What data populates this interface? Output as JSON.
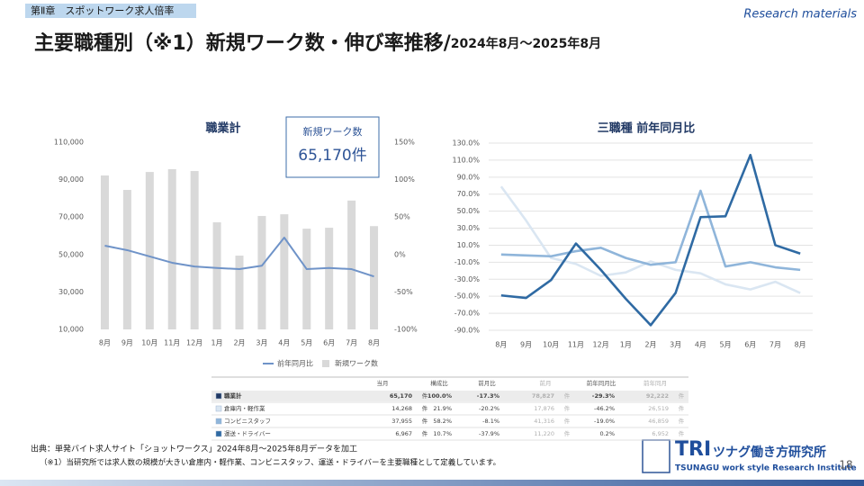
{
  "header": {
    "chapter": "第Ⅱ章　スポットワーク求人倍率",
    "tag": "Research materials",
    "title": "主要職種別（※1）新規ワーク数・伸び率推移/",
    "subtitle": "2024年8月～2025年8月"
  },
  "chart_data": [
    {
      "type": "combo",
      "title": "職業計",
      "annotation": {
        "label": "新規ワーク数",
        "value": "65,170件"
      },
      "categories": [
        "8月",
        "9月",
        "10月",
        "11月",
        "12月",
        "1月",
        "2月",
        "3月",
        "4月",
        "5月",
        "6月",
        "7月",
        "8月"
      ],
      "series": [
        {
          "name": "前年同月比",
          "type": "line",
          "axis": "y2",
          "color": "#6f93c8",
          "values": [
            11.8,
            5.8,
            -2.6,
            -11,
            -16,
            -18,
            -19.5,
            -15,
            22.6,
            -19.5,
            -18,
            -19.5,
            -29.3
          ]
        },
        {
          "name": "新規ワーク数",
          "type": "bar",
          "color": "#d9d9d9",
          "values": [
            92222,
            84500,
            94100,
            95600,
            94600,
            67200,
            49400,
            70600,
            71500,
            63800,
            64300,
            78827,
            65170
          ]
        }
      ],
      "ylim": [
        10000,
        110000
      ],
      "yticks": [
        {
          "value": 10000,
          "label": "10,000"
        },
        {
          "value": 30000,
          "label": "30,000"
        },
        {
          "value": 50000,
          "label": "50,000"
        },
        {
          "value": 70000,
          "label": "70,000"
        },
        {
          "value": 90000,
          "label": "90,000"
        },
        {
          "value": 110000,
          "label": "110,000"
        }
      ],
      "y2lim": [
        -100,
        150
      ],
      "y2ticks": [
        {
          "value": -100,
          "label": "-100%"
        },
        {
          "value": -50,
          "label": "-50%"
        },
        {
          "value": 0,
          "label": "0%"
        },
        {
          "value": 50,
          "label": "50%"
        },
        {
          "value": 100,
          "label": "100%"
        },
        {
          "value": 150,
          "label": "150%"
        }
      ],
      "grid": false,
      "legend": "bottom"
    },
    {
      "type": "line",
      "title": "三職種 前年同月比",
      "categories": [
        "8月",
        "9月",
        "10月",
        "11月",
        "12月",
        "1月",
        "2月",
        "3月",
        "4月",
        "5月",
        "6月",
        "7月",
        "8月"
      ],
      "series": [
        {
          "name": "倉庫内・軽作業",
          "color": "#dae6f2",
          "values": [
            79,
            39,
            -5,
            -12,
            -26,
            -22,
            -9,
            -19,
            -23,
            -36,
            -42,
            -33,
            -46.2
          ]
        },
        {
          "name": "コンビニスタッフ",
          "color": "#8fb5da",
          "values": [
            -1,
            -2,
            -3,
            3,
            7,
            -5,
            -13,
            -10,
            74,
            -15,
            -10,
            -16,
            -19
          ]
        },
        {
          "name": "運送・ドライバー",
          "color": "#2f6aa3",
          "values": [
            -49,
            -52,
            -31,
            12,
            -19,
            -53,
            -84,
            -46,
            43,
            44,
            116,
            10,
            0.2
          ]
        }
      ],
      "ylim": [
        -90,
        130
      ],
      "yticks": [
        {
          "value": -90,
          "label": "-90.0%"
        },
        {
          "value": -70,
          "label": "-70.0%"
        },
        {
          "value": -50,
          "label": "-50.0%"
        },
        {
          "value": -30,
          "label": "-30.0%"
        },
        {
          "value": -10,
          "label": "-10.0%"
        },
        {
          "value": 10,
          "label": "10.0%"
        },
        {
          "value": 30,
          "label": "30.0%"
        },
        {
          "value": 50,
          "label": "50.0%"
        },
        {
          "value": 70,
          "label": "70.0%"
        },
        {
          "value": 90,
          "label": "90.0%"
        },
        {
          "value": 110,
          "label": "110.0%"
        },
        {
          "value": 130,
          "label": "130.0%"
        }
      ],
      "grid": true,
      "legend": "none"
    }
  ],
  "table": {
    "columns": [
      "当月",
      "構成比",
      "前月比",
      "前月",
      "前年同月比",
      "前年同月"
    ],
    "unit": "件",
    "rows": [
      {
        "name": "職業計",
        "color": "#203864",
        "cells": [
          "65,170",
          "100.0%",
          "-17.3%",
          "78,827",
          "-29.3%",
          "92,222"
        ]
      },
      {
        "name": "倉庫内・軽作業",
        "color": "#dae6f2",
        "cells": [
          "14,268",
          "21.9%",
          "-20.2%",
          "17,876",
          "-46.2%",
          "26,519"
        ]
      },
      {
        "name": "コンビニスタッフ",
        "color": "#8fb5da",
        "cells": [
          "37,955",
          "58.2%",
          "-8.1%",
          "41,316",
          "-19.0%",
          "46,859"
        ]
      },
      {
        "name": "運送・ドライバー",
        "color": "#2f6aa3",
        "cells": [
          "6,967",
          "10.7%",
          "-37.9%",
          "11,220",
          "0.2%",
          "6,952"
        ]
      }
    ]
  },
  "footer": {
    "source": "出典：単発バイト求人サイト「ショットワークス」2024年8月～2025年8月データを加工",
    "note": "（※1）当研究所では求人数の規模が大きい倉庫内・軽作業、コンビニスタッフ、運送・ドライバーを主要職種として定義しています。",
    "logo": "TRI",
    "logo_jp": "ツナグ働き方研究所",
    "logo_en": "TSUNAGU work style Research Institute",
    "page": "18"
  }
}
